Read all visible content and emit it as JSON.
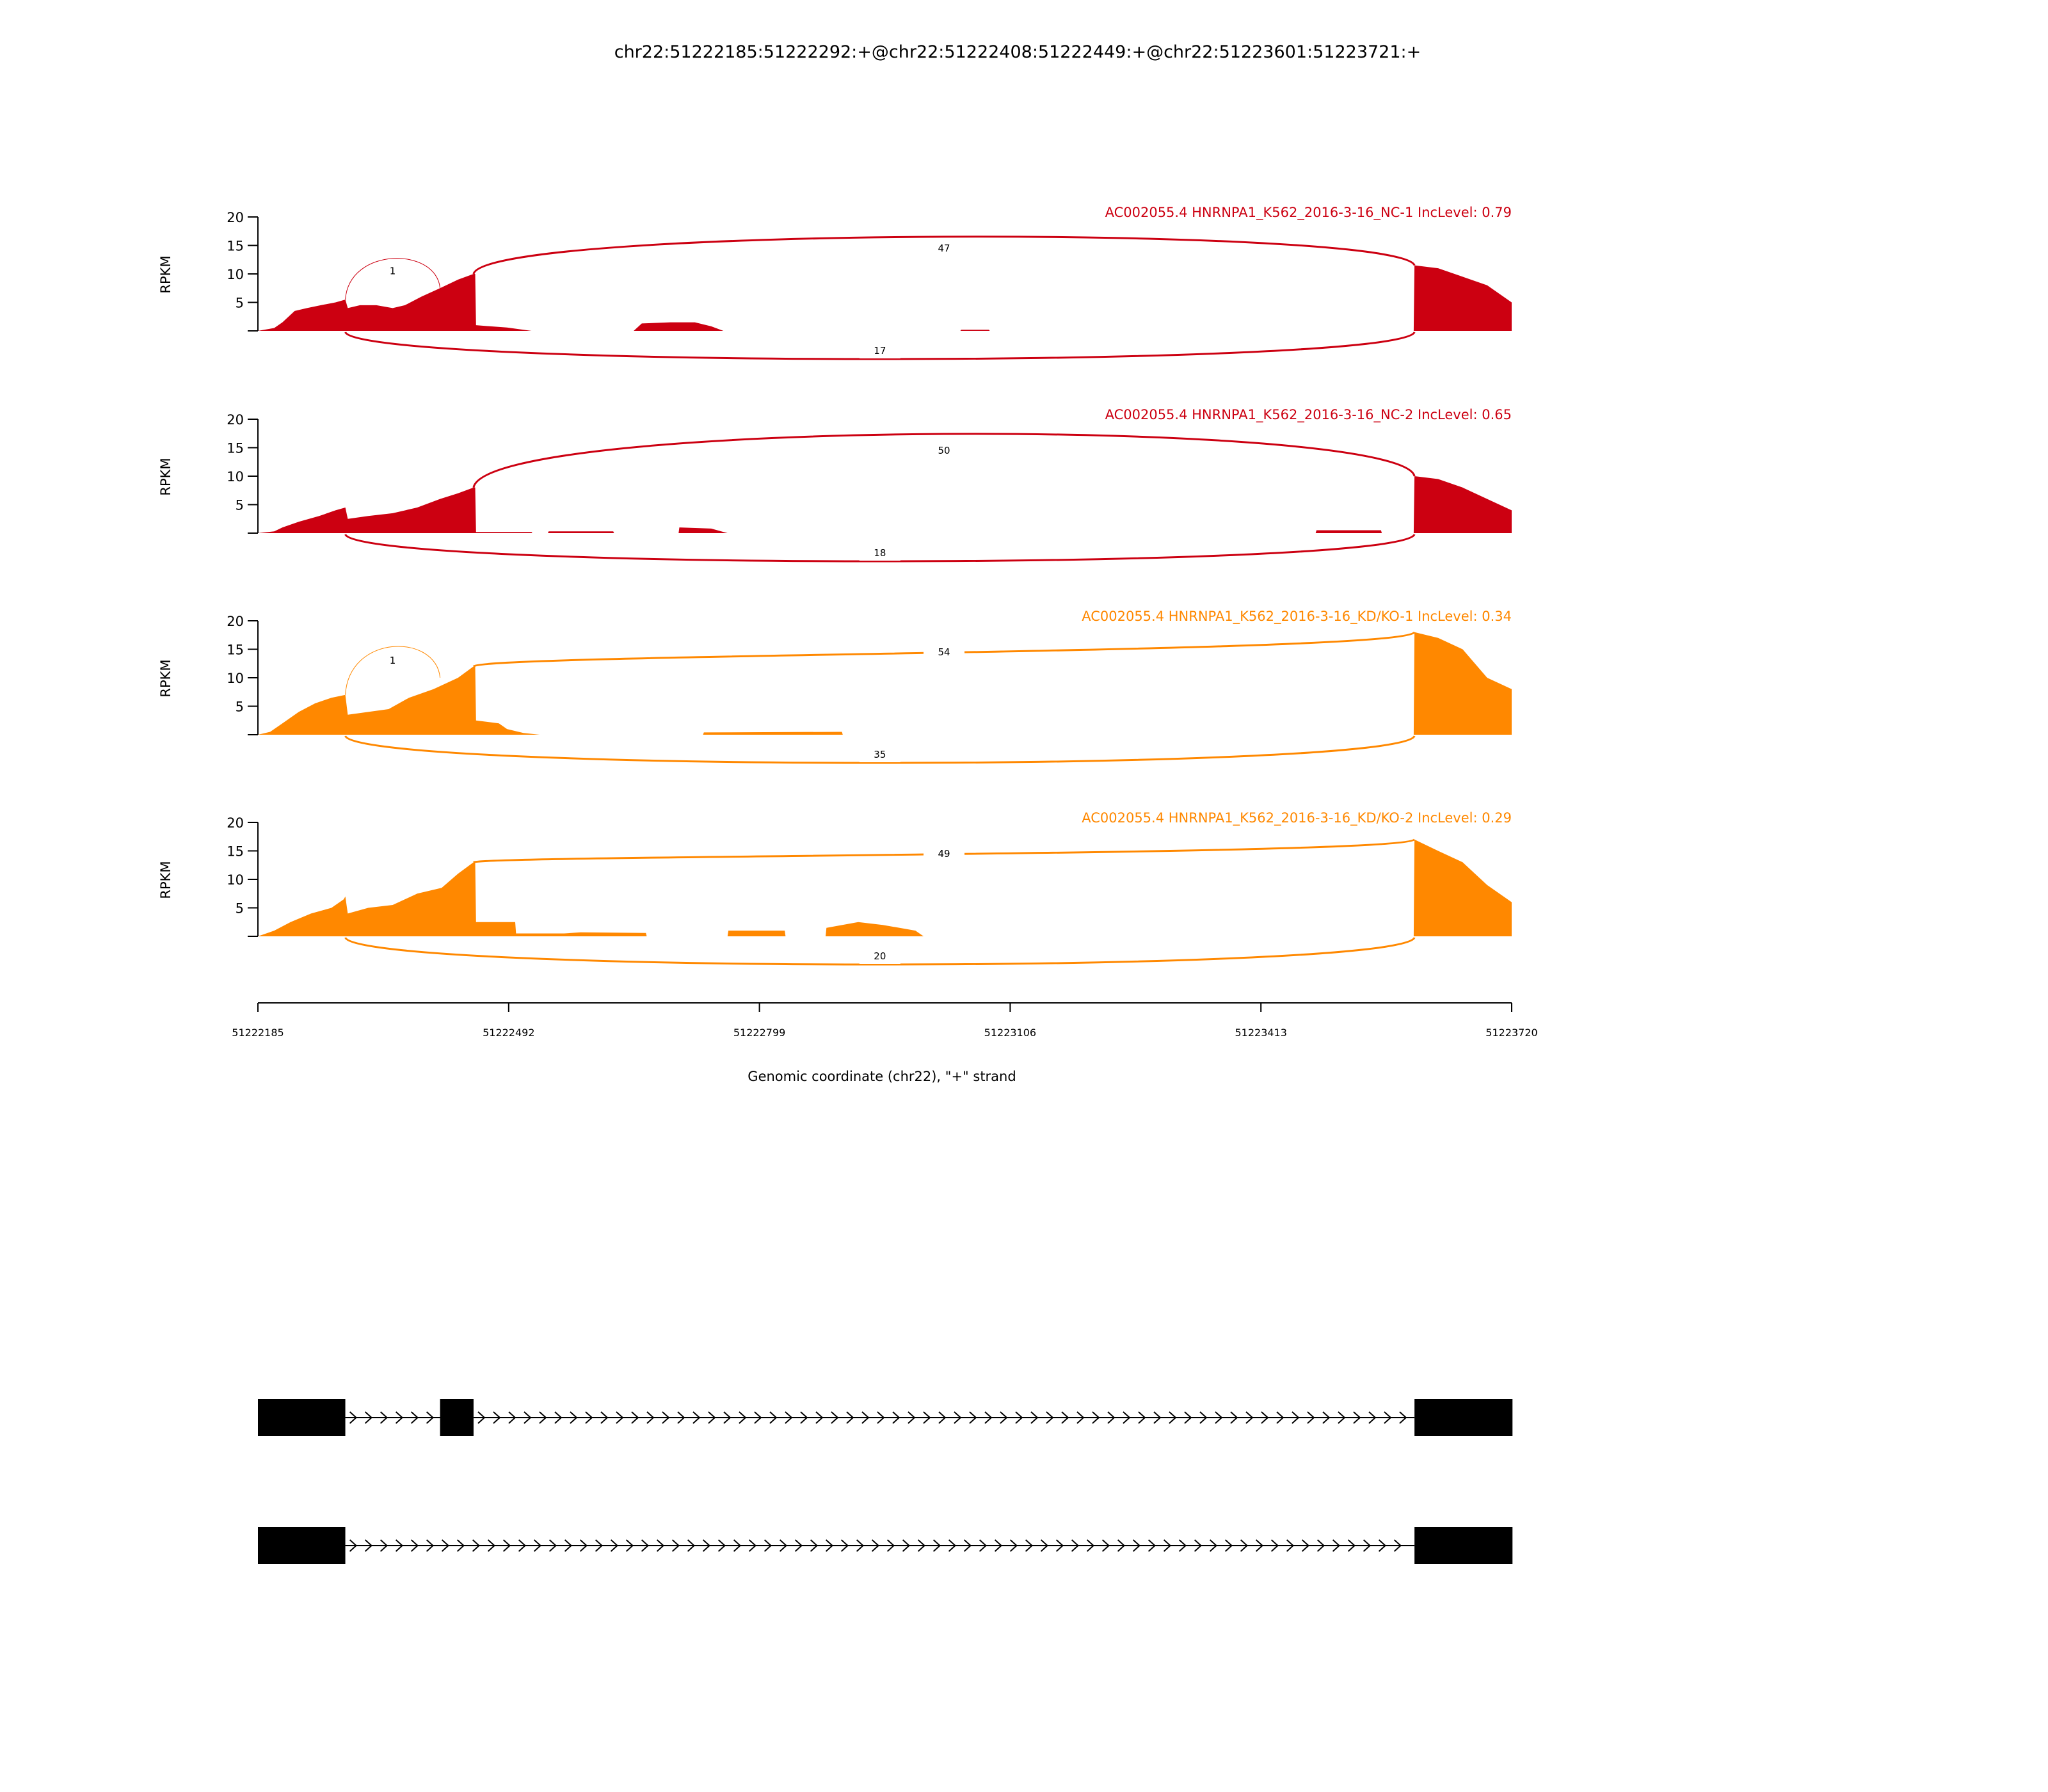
{
  "chart_data": {
    "type": "area",
    "title": "chr22:51222185:51222292:+@chr22:51222408:51222449:+@chr22:51223601:51223721:+",
    "xlabel": "Genomic coordinate (chr22), \"+\" strand",
    "ylabel": "RPKM",
    "xlim": [
      51222185,
      51223720
    ],
    "ylim": [
      0,
      20
    ],
    "x_ticks": [
      "51222185",
      "51222492",
      "51222799",
      "51223106",
      "51223413",
      "51223720"
    ],
    "y_ticks": [
      "5",
      "10",
      "15",
      "20"
    ],
    "colors": {
      "nc": "#cc0011",
      "kd": "#ff8800"
    },
    "exons": [
      [
        51222185,
        51222292
      ],
      [
        51222408,
        51222449
      ],
      [
        51223601,
        51223721
      ]
    ],
    "isoforms": [
      {
        "exons": [
          [
            51222185,
            51222292
          ],
          [
            51222408,
            51222449
          ],
          [
            51223601,
            51223721
          ]
        ]
      },
      {
        "exons": [
          [
            51222185,
            51222292
          ],
          [
            51223601,
            51223721
          ]
        ]
      }
    ],
    "series": [
      {
        "name": "AC002055.4 HNRNPA1_K562_2016-3-16_NC-1 IncLevel: 0.79",
        "color": "#cc0011",
        "coverage": [
          [
            51222185,
            0
          ],
          [
            51222205,
            0.5
          ],
          [
            51222215,
            1.5
          ],
          [
            51222230,
            3.5
          ],
          [
            51222245,
            4
          ],
          [
            51222262,
            4.5
          ],
          [
            51222280,
            5
          ],
          [
            51222292,
            5.5
          ],
          [
            51222295,
            4
          ],
          [
            51222310,
            4.5
          ],
          [
            51222330,
            4.5
          ],
          [
            51222350,
            4
          ],
          [
            51222365,
            4.5
          ],
          [
            51222385,
            6
          ],
          [
            51222408,
            7.5
          ],
          [
            51222430,
            9
          ],
          [
            51222449,
            10
          ],
          [
            51222451,
            10
          ],
          [
            51222452,
            1
          ],
          [
            51222470,
            0.8
          ],
          [
            51222490,
            0.6
          ],
          [
            51222510,
            0.2
          ],
          [
            51222520,
            0
          ],
          [
            51222645,
            0
          ],
          [
            51222655,
            1.3
          ],
          [
            51222690,
            1.5
          ],
          [
            51222720,
            1.5
          ],
          [
            51222740,
            0.8
          ],
          [
            51222755,
            0
          ],
          [
            51223045,
            0
          ],
          [
            51223046,
            0.2
          ],
          [
            51223080,
            0.2
          ],
          [
            51223081,
            0
          ],
          [
            51223600,
            0
          ],
          [
            51223601,
            11.5
          ],
          [
            51223630,
            11
          ],
          [
            51223660,
            9.5
          ],
          [
            51223690,
            8
          ],
          [
            51223720,
            5
          ]
        ],
        "junctions": [
          {
            "from": 51222292,
            "to": 51222408,
            "count": "1",
            "side": "above"
          },
          {
            "from": 51222449,
            "to": 51223601,
            "count": "47",
            "side": "above"
          },
          {
            "from": 51222292,
            "to": 51223601,
            "count": "17",
            "side": "below"
          }
        ]
      },
      {
        "name": "AC002055.4 HNRNPA1_K562_2016-3-16_NC-2 IncLevel: 0.65",
        "color": "#cc0011",
        "coverage": [
          [
            51222185,
            0
          ],
          [
            51222205,
            0.3
          ],
          [
            51222215,
            1
          ],
          [
            51222235,
            2
          ],
          [
            51222260,
            3
          ],
          [
            51222280,
            4
          ],
          [
            51222292,
            4.5
          ],
          [
            51222295,
            2.5
          ],
          [
            51222320,
            3
          ],
          [
            51222350,
            3.5
          ],
          [
            51222380,
            4.5
          ],
          [
            51222408,
            6
          ],
          [
            51222430,
            7
          ],
          [
            51222449,
            8
          ],
          [
            51222451,
            8
          ],
          [
            51222452,
            0.2
          ],
          [
            51222520,
            0.2
          ],
          [
            51222521,
            0
          ],
          [
            51222540,
            0
          ],
          [
            51222541,
            0.3
          ],
          [
            51222620,
            0.3
          ],
          [
            51222621,
            0
          ],
          [
            51222700,
            0
          ],
          [
            51222701,
            1
          ],
          [
            51222740,
            0.8
          ],
          [
            51222760,
            0
          ],
          [
            51223480,
            0
          ],
          [
            51223481,
            0.5
          ],
          [
            51223560,
            0.5
          ],
          [
            51223561,
            0
          ],
          [
            51223600,
            0
          ],
          [
            51223601,
            10
          ],
          [
            51223630,
            9.5
          ],
          [
            51223660,
            8
          ],
          [
            51223690,
            6
          ],
          [
            51223720,
            4
          ]
        ],
        "junctions": [
          {
            "from": 51222449,
            "to": 51223601,
            "count": "50",
            "side": "above"
          },
          {
            "from": 51222292,
            "to": 51223601,
            "count": "18",
            "side": "below"
          }
        ]
      },
      {
        "name": "AC002055.4 HNRNPA1_K562_2016-3-16_KD/KO-1 IncLevel: 0.34",
        "color": "#ff8800",
        "coverage": [
          [
            51222185,
            0
          ],
          [
            51222200,
            0.5
          ],
          [
            51222215,
            2
          ],
          [
            51222235,
            4
          ],
          [
            51222255,
            5.5
          ],
          [
            51222275,
            6.5
          ],
          [
            51222292,
            7
          ],
          [
            51222295,
            3.5
          ],
          [
            51222320,
            4
          ],
          [
            51222345,
            4.5
          ],
          [
            51222370,
            6.5
          ],
          [
            51222400,
            8
          ],
          [
            51222430,
            10
          ],
          [
            51222449,
            12
          ],
          [
            51222451,
            12
          ],
          [
            51222452,
            2.5
          ],
          [
            51222480,
            2
          ],
          [
            51222490,
            1
          ],
          [
            51222510,
            0.3
          ],
          [
            51222530,
            0
          ],
          [
            51222730,
            0
          ],
          [
            51222731,
            0.4
          ],
          [
            51222900,
            0.5
          ],
          [
            51222901,
            0
          ],
          [
            51223600,
            0
          ],
          [
            51223601,
            18
          ],
          [
            51223630,
            17
          ],
          [
            51223660,
            15
          ],
          [
            51223690,
            10
          ],
          [
            51223720,
            8
          ]
        ],
        "junctions": [
          {
            "from": 51222292,
            "to": 51222408,
            "count": "1",
            "side": "above"
          },
          {
            "from": 51222449,
            "to": 51223601,
            "count": "54",
            "side": "above"
          },
          {
            "from": 51222292,
            "to": 51223601,
            "count": "35",
            "side": "below"
          }
        ]
      },
      {
        "name": "AC002055.4 HNRNPA1_K562_2016-3-16_KD/KO-2 IncLevel: 0.29",
        "color": "#ff8800",
        "coverage": [
          [
            51222185,
            0
          ],
          [
            51222205,
            1
          ],
          [
            51222225,
            2.5
          ],
          [
            51222250,
            4
          ],
          [
            51222275,
            5
          ],
          [
            51222290,
            6.5
          ],
          [
            51222292,
            7
          ],
          [
            51222295,
            4
          ],
          [
            51222320,
            5
          ],
          [
            51222350,
            5.5
          ],
          [
            51222380,
            7.5
          ],
          [
            51222410,
            8.5
          ],
          [
            51222430,
            11
          ],
          [
            51222449,
            13
          ],
          [
            51222451,
            13
          ],
          [
            51222452,
            2.5
          ],
          [
            51222500,
            2.5
          ],
          [
            51222501,
            0.5
          ],
          [
            51222560,
            0.5
          ],
          [
            51222580,
            0.7
          ],
          [
            51222660,
            0.6
          ],
          [
            51222661,
            0
          ],
          [
            51222760,
            0
          ],
          [
            51222761,
            1
          ],
          [
            51222830,
            1
          ],
          [
            51222831,
            0
          ],
          [
            51222880,
            0
          ],
          [
            51222881,
            1.5
          ],
          [
            51222920,
            2.5
          ],
          [
            51222950,
            2
          ],
          [
            51222990,
            1
          ],
          [
            51223000,
            0
          ],
          [
            51223600,
            0
          ],
          [
            51223601,
            17
          ],
          [
            51223630,
            15
          ],
          [
            51223660,
            13
          ],
          [
            51223690,
            9
          ],
          [
            51223720,
            6
          ]
        ],
        "junctions": [
          {
            "from": 51222449,
            "to": 51223601,
            "count": "49",
            "side": "above"
          },
          {
            "from": 51222292,
            "to": 51223601,
            "count": "20",
            "side": "below"
          }
        ]
      }
    ]
  }
}
